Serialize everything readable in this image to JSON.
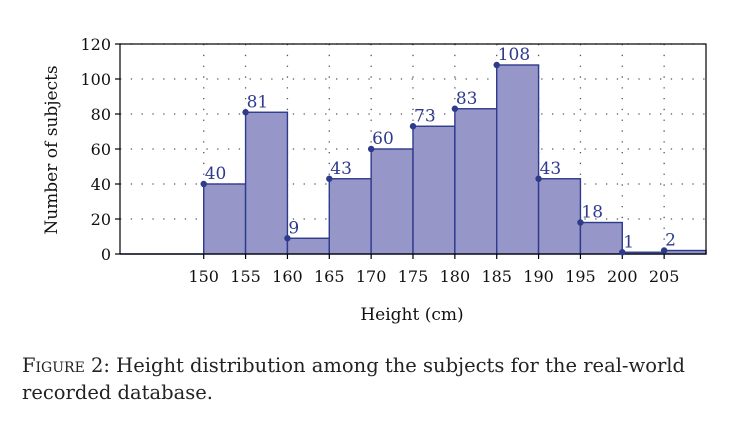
{
  "chart_data": {
    "type": "bar",
    "title": "",
    "xlabel": "Height (cm)",
    "ylabel": "Number of subjects",
    "x_ticks": [
      150,
      155,
      160,
      165,
      170,
      175,
      180,
      185,
      190,
      195,
      200,
      205
    ],
    "y_ticks": [
      0,
      20,
      40,
      60,
      80,
      100,
      120
    ],
    "xlim": [
      140,
      210
    ],
    "ylim": [
      0,
      120
    ],
    "bins": [
      {
        "start": 150,
        "end": 155,
        "value": 40
      },
      {
        "start": 155,
        "end": 160,
        "value": 81
      },
      {
        "start": 160,
        "end": 165,
        "value": 9
      },
      {
        "start": 165,
        "end": 170,
        "value": 43
      },
      {
        "start": 170,
        "end": 175,
        "value": 60
      },
      {
        "start": 175,
        "end": 180,
        "value": 73
      },
      {
        "start": 180,
        "end": 185,
        "value": 83
      },
      {
        "start": 185,
        "end": 190,
        "value": 108
      },
      {
        "start": 190,
        "end": 195,
        "value": 43
      },
      {
        "start": 195,
        "end": 200,
        "value": 18
      },
      {
        "start": 200,
        "end": 205,
        "value": 1
      },
      {
        "start": 205,
        "end": 210,
        "value": 2
      }
    ],
    "grid": true,
    "grid_style": "dotted",
    "bar_color": "#9696c8",
    "bar_edge_color": "#2e3a8c",
    "label_color": "#2e3a8c"
  },
  "caption": {
    "label": "Figure 2:",
    "text": " Height distribution among the subjects for the real-world recorded database."
  }
}
